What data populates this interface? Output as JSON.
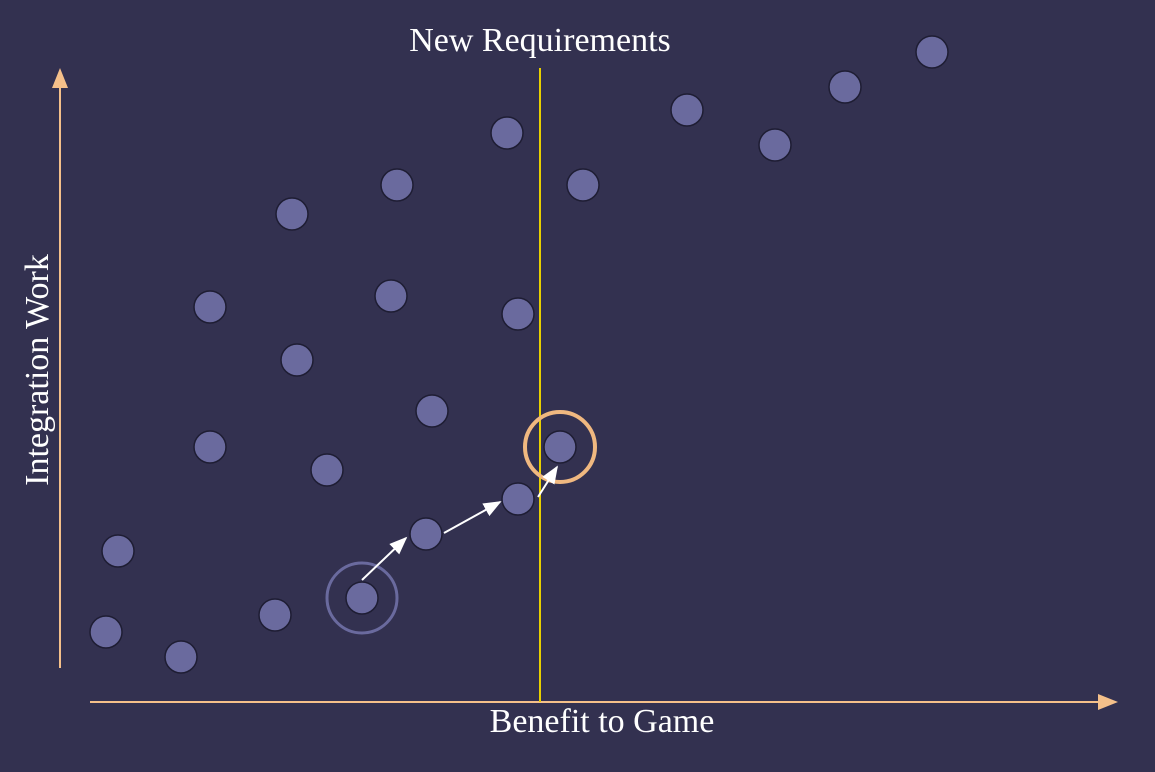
{
  "title": "New Requirements",
  "x_axis_label": "Benefit to Game",
  "y_axis_label": "Integration Work"
}
